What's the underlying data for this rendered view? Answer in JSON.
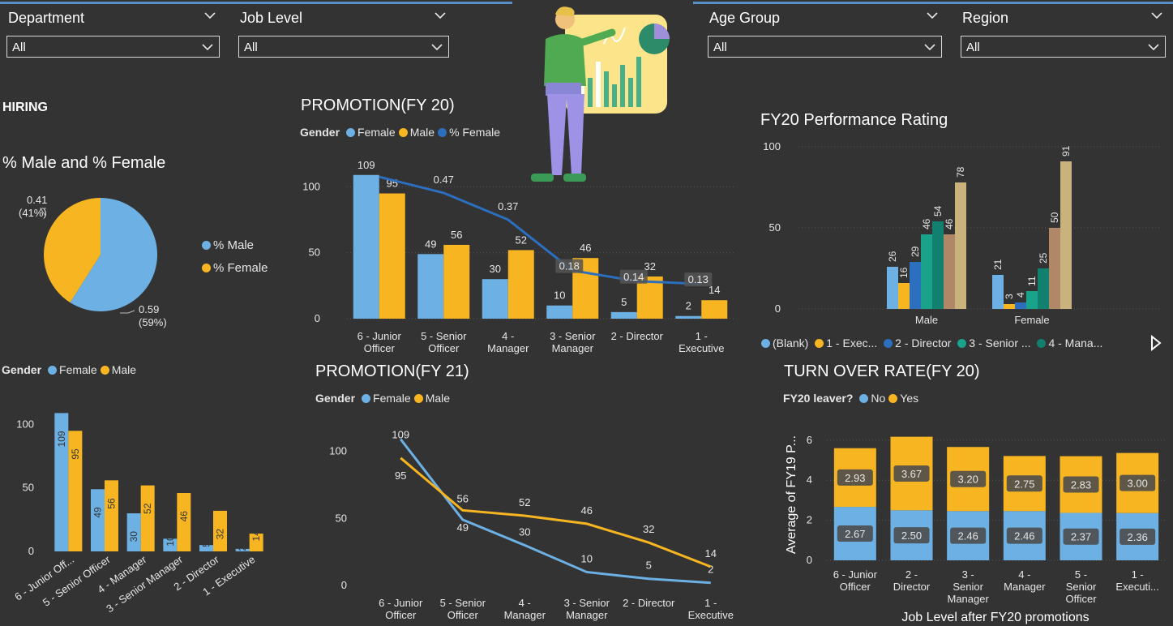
{
  "colors": {
    "female": "#6cb0e4",
    "male": "#f7b521",
    "pct_female_line": "#2c6fbf",
    "background": "#333333",
    "perf": [
      "#6cb0e4",
      "#f7b521",
      "#2c6fbf",
      "#19a38a",
      "#11806e",
      "#b08868",
      "#c9b27c"
    ]
  },
  "slicers": [
    {
      "title": "Department",
      "value": "All"
    },
    {
      "title": "Job Level",
      "value": "All"
    },
    {
      "title": "Age Group",
      "value": "All"
    },
    {
      "title": "Region",
      "value": "All"
    }
  ],
  "hiring": {
    "heading": "HIRING"
  },
  "pie": {
    "title": "% Male and % Female",
    "legend": [
      "% Male",
      "% Female"
    ],
    "label_female": [
      "0.41",
      "(41%)"
    ],
    "label_male": [
      "0.59",
      "(59%)"
    ]
  },
  "hiring_bar": {
    "legend_title": "Gender",
    "legend": [
      "Female",
      "Male"
    ]
  },
  "promo20": {
    "title": "PROMOTION(FY 20)",
    "legend_title": "Gender",
    "legend": [
      "Female",
      "Male",
      "% Female"
    ]
  },
  "promo21": {
    "title": "PROMOTION(FY 21)",
    "legend_title": "Gender",
    "legend": [
      "Female",
      "Male"
    ]
  },
  "perf": {
    "title": "FY20 Performance Rating",
    "legend": [
      "(Blank)",
      "1 - Exec...",
      "2 - Director",
      "3 - Senior ...",
      "4 - Mana..."
    ],
    "next_glyph": "▷"
  },
  "turnover": {
    "title": "TURN OVER RATE(FY 20)",
    "legend_title": "FY20 leaver?",
    "legend": [
      "No",
      "Yes"
    ]
  },
  "chart_data": [
    {
      "id": "pie",
      "type": "pie",
      "title": "% Male and % Female",
      "slices": [
        {
          "name": "% Male",
          "value": 0.59
        },
        {
          "name": "% Female",
          "value": 0.41
        }
      ]
    },
    {
      "id": "hiring",
      "type": "bar",
      "categories": [
        "6 - Junior Off...",
        "5 - Senior Officer",
        "4 - Manager",
        "3 - Senior Manager",
        "2 - Director",
        "1 - Executive"
      ],
      "series": [
        {
          "name": "Female",
          "values": [
            109,
            49,
            30,
            10,
            5,
            2
          ]
        },
        {
          "name": "Male",
          "values": [
            95,
            56,
            52,
            46,
            32,
            14
          ]
        }
      ],
      "yticks": [
        0,
        50,
        100
      ],
      "ylim": [
        0,
        115
      ]
    },
    {
      "id": "promo20",
      "type": "bar",
      "title": "PROMOTION(FY 20)",
      "categories": [
        [
          "6 - Junior",
          "Officer"
        ],
        [
          "5 - Senior",
          "Officer"
        ],
        [
          "4 -",
          "Manager"
        ],
        [
          "3 - Senior",
          "Manager"
        ],
        [
          "2 - Director"
        ],
        [
          "1 -",
          "Executive"
        ]
      ],
      "series": [
        {
          "name": "Female",
          "values": [
            109,
            49,
            30,
            10,
            5,
            2
          ]
        },
        {
          "name": "Male",
          "values": [
            95,
            56,
            52,
            46,
            32,
            14
          ]
        }
      ],
      "line": {
        "name": "% Female",
        "values": [
          0.53,
          0.47,
          0.37,
          0.18,
          0.14,
          0.13
        ],
        "labels": [
          "",
          "0.47",
          "0.37",
          "0.18",
          "0.14",
          "0.13"
        ]
      },
      "yticks": [
        0,
        50,
        100
      ],
      "ylim": [
        0,
        115
      ]
    },
    {
      "id": "promo21",
      "type": "line",
      "title": "PROMOTION(FY 21)",
      "categories": [
        [
          "6 - Junior",
          "Officer"
        ],
        [
          "5 - Senior",
          "Officer"
        ],
        [
          "4 -",
          "Manager"
        ],
        [
          "3 - Senior",
          "Manager"
        ],
        [
          "2 - Director"
        ],
        [
          "1 -",
          "Executive"
        ]
      ],
      "series": [
        {
          "name": "Female",
          "values": [
            109,
            49,
            30,
            10,
            5,
            2
          ]
        },
        {
          "name": "Male",
          "values": [
            95,
            56,
            52,
            46,
            32,
            14
          ]
        }
      ],
      "yticks": [
        0,
        50,
        100
      ],
      "ylim": [
        0,
        110
      ]
    },
    {
      "id": "perf",
      "type": "bar",
      "title": "FY20 Performance Rating",
      "categories": [
        "Male",
        "Female"
      ],
      "series": [
        {
          "name": "s1",
          "values": [
            26,
            21
          ]
        },
        {
          "name": "s2",
          "values": [
            16,
            3
          ]
        },
        {
          "name": "s3",
          "values": [
            29,
            4
          ]
        },
        {
          "name": "s4",
          "values": [
            46,
            11
          ]
        },
        {
          "name": "s5",
          "values": [
            54,
            25
          ]
        },
        {
          "name": "s6",
          "values": [
            46,
            50
          ]
        },
        {
          "name": "s7",
          "values": [
            78,
            91
          ]
        }
      ],
      "yticks": [
        0,
        50,
        100
      ],
      "ylim": [
        0,
        100
      ]
    },
    {
      "id": "turnover",
      "type": "bar",
      "title": "TURN OVER RATE(FY 20)",
      "stacked": true,
      "xlabel": "Job Level after FY20 promotions",
      "ylabel": "Average of FY19 P...",
      "categories": [
        [
          "6 - Junior",
          "Officer"
        ],
        [
          "2 -",
          "Director"
        ],
        [
          "3 -",
          "Senior",
          "Manager"
        ],
        [
          "4 -",
          "Manager"
        ],
        [
          "5 -",
          "Senior",
          "Officer"
        ],
        [
          "1 -",
          "Executi..."
        ]
      ],
      "series": [
        {
          "name": "No",
          "values": [
            2.67,
            2.5,
            2.46,
            2.46,
            2.37,
            2.36
          ],
          "labels": [
            "2.67",
            "2.50",
            "2.46",
            "2.46",
            "2.37",
            "2.36"
          ]
        },
        {
          "name": "Yes",
          "values": [
            2.93,
            3.67,
            3.2,
            2.75,
            2.83,
            3.0
          ],
          "labels": [
            "2.93",
            "3.67",
            "3.20",
            "2.75",
            "2.83",
            "3.00"
          ]
        }
      ],
      "yticks": [
        0,
        2,
        4,
        6
      ],
      "ylim": [
        0,
        6.6
      ]
    }
  ]
}
